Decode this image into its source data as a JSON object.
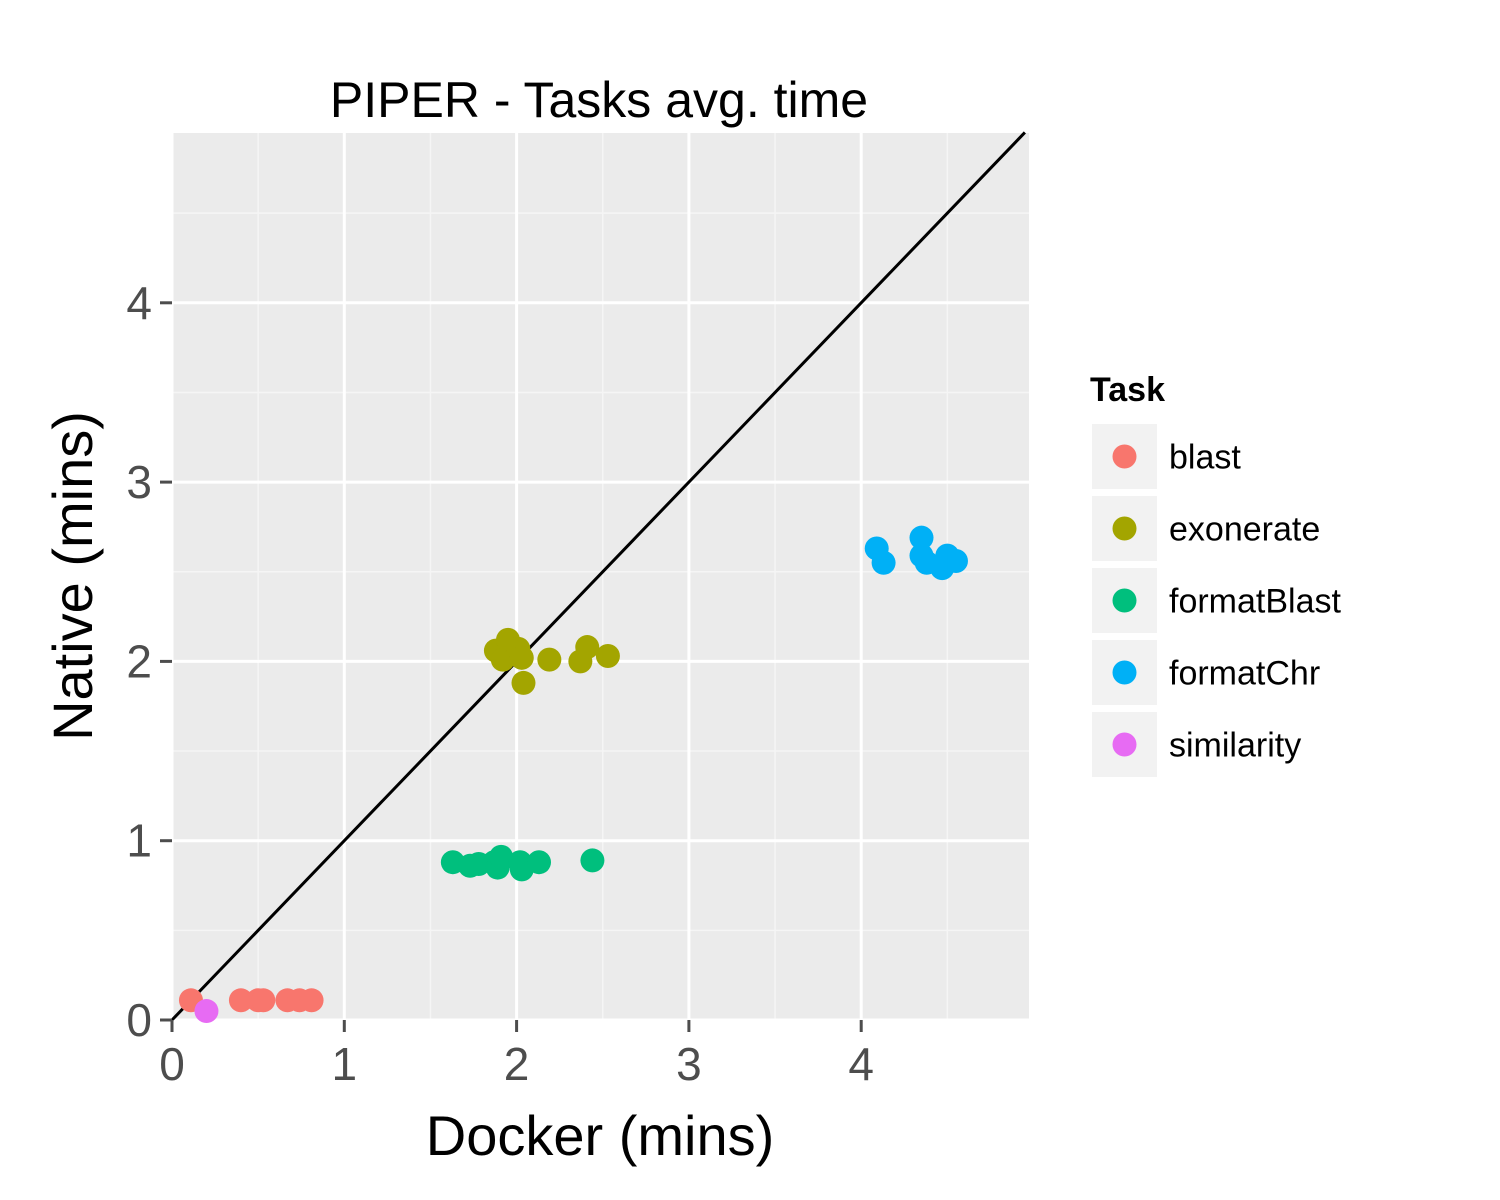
{
  "chart_data": {
    "type": "scatter",
    "title": "PIPER - Tasks avg. time",
    "xlabel": "Docker (mins)",
    "ylabel": "Native (mins)",
    "xlim": [
      0,
      4.95
    ],
    "ylim": [
      0,
      4.95
    ],
    "x_ticks": [
      "0",
      "1",
      "2",
      "3",
      "4"
    ],
    "y_ticks": [
      "0",
      "1",
      "2",
      "3",
      "4"
    ],
    "grid": true,
    "reference_line": "y = x",
    "legend_title": "Task",
    "legend_position": "right",
    "series": [
      {
        "name": "blast",
        "color": "#F8766D",
        "points": [
          [
            0.11,
            0.11
          ],
          [
            0.4,
            0.11
          ],
          [
            0.5,
            0.11
          ],
          [
            0.53,
            0.11
          ],
          [
            0.67,
            0.11
          ],
          [
            0.74,
            0.11
          ],
          [
            0.81,
            0.11
          ]
        ]
      },
      {
        "name": "exonerate",
        "color": "#A3A500",
        "points": [
          [
            1.88,
            2.06
          ],
          [
            1.92,
            2.01
          ],
          [
            1.95,
            2.12
          ],
          [
            2.01,
            2.07
          ],
          [
            2.03,
            2.02
          ],
          [
            2.04,
            1.88
          ],
          [
            2.19,
            2.01
          ],
          [
            2.37,
            2.0
          ],
          [
            2.41,
            2.08
          ],
          [
            2.53,
            2.03
          ]
        ]
      },
      {
        "name": "formatBlast",
        "color": "#00BF7D",
        "points": [
          [
            1.63,
            0.88
          ],
          [
            1.73,
            0.86
          ],
          [
            1.78,
            0.87
          ],
          [
            1.87,
            0.88
          ],
          [
            1.89,
            0.85
          ],
          [
            1.91,
            0.91
          ],
          [
            2.02,
            0.88
          ],
          [
            2.03,
            0.84
          ],
          [
            2.13,
            0.88
          ],
          [
            2.44,
            0.89
          ]
        ]
      },
      {
        "name": "formatChr",
        "color": "#00B0F6",
        "points": [
          [
            4.09,
            2.63
          ],
          [
            4.13,
            2.55
          ],
          [
            4.35,
            2.69
          ],
          [
            4.35,
            2.59
          ],
          [
            4.38,
            2.55
          ],
          [
            4.47,
            2.52
          ],
          [
            4.5,
            2.59
          ],
          [
            4.55,
            2.56
          ]
        ]
      },
      {
        "name": "similarity",
        "color": "#E76BF3",
        "points": [
          [
            0.2,
            0.05
          ]
        ]
      }
    ]
  }
}
